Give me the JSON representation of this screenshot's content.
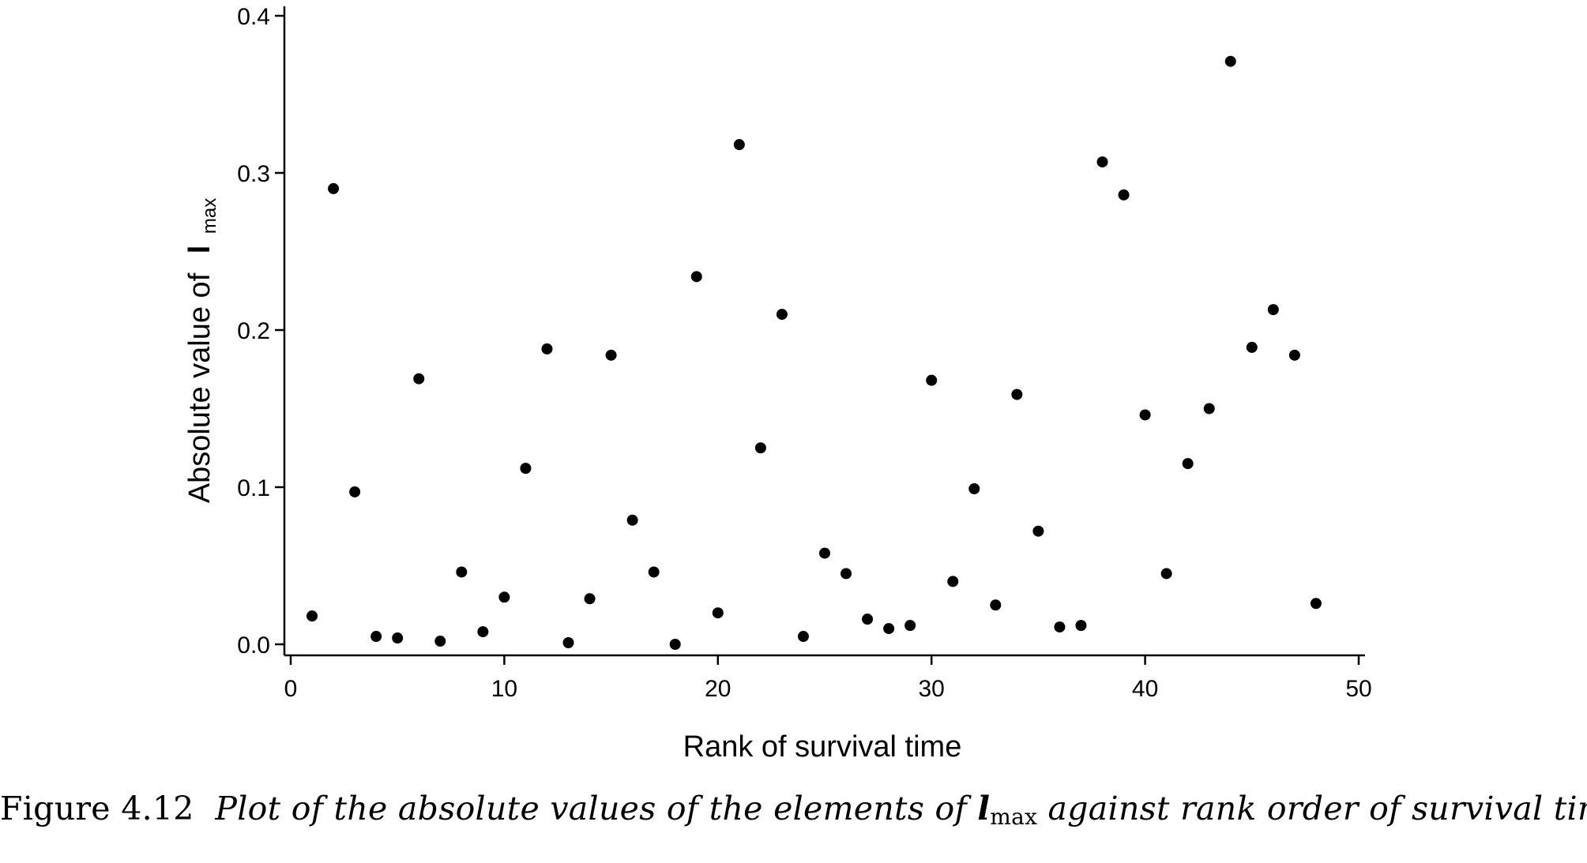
{
  "chart_data": {
    "type": "scatter",
    "xlabel": "Rank of survival time",
    "ylabel": "Absolute value of",
    "ylabel_symbol": "l",
    "ylabel_subscript": "max",
    "xlim": [
      0,
      50
    ],
    "ylim": [
      0,
      0.4
    ],
    "xticks": [
      "0",
      "10",
      "20",
      "30",
      "40",
      "50"
    ],
    "yticks": [
      "0.0",
      "0.1",
      "0.2",
      "0.3",
      "0.4"
    ],
    "grid": false,
    "marker_color": "#000000",
    "points": [
      {
        "x": 1,
        "y": 0.018
      },
      {
        "x": 2,
        "y": 0.29
      },
      {
        "x": 3,
        "y": 0.097
      },
      {
        "x": 4,
        "y": 0.005
      },
      {
        "x": 5,
        "y": 0.004
      },
      {
        "x": 6,
        "y": 0.169
      },
      {
        "x": 7,
        "y": 0.002
      },
      {
        "x": 8,
        "y": 0.046
      },
      {
        "x": 9,
        "y": 0.008
      },
      {
        "x": 10,
        "y": 0.03
      },
      {
        "x": 11,
        "y": 0.112
      },
      {
        "x": 12,
        "y": 0.188
      },
      {
        "x": 13,
        "y": 0.001
      },
      {
        "x": 14,
        "y": 0.029
      },
      {
        "x": 15,
        "y": 0.184
      },
      {
        "x": 16,
        "y": 0.079
      },
      {
        "x": 17,
        "y": 0.046
      },
      {
        "x": 18,
        "y": 0.0
      },
      {
        "x": 19,
        "y": 0.234
      },
      {
        "x": 20,
        "y": 0.02
      },
      {
        "x": 21,
        "y": 0.318
      },
      {
        "x": 22,
        "y": 0.125
      },
      {
        "x": 23,
        "y": 0.21
      },
      {
        "x": 24,
        "y": 0.005
      },
      {
        "x": 25,
        "y": 0.058
      },
      {
        "x": 26,
        "y": 0.045
      },
      {
        "x": 27,
        "y": 0.016
      },
      {
        "x": 28,
        "y": 0.01
      },
      {
        "x": 29,
        "y": 0.012
      },
      {
        "x": 30,
        "y": 0.168
      },
      {
        "x": 31,
        "y": 0.04
      },
      {
        "x": 32,
        "y": 0.099
      },
      {
        "x": 33,
        "y": 0.025
      },
      {
        "x": 34,
        "y": 0.159
      },
      {
        "x": 35,
        "y": 0.072
      },
      {
        "x": 36,
        "y": 0.011
      },
      {
        "x": 37,
        "y": 0.012
      },
      {
        "x": 38,
        "y": 0.307
      },
      {
        "x": 39,
        "y": 0.286
      },
      {
        "x": 40,
        "y": 0.146
      },
      {
        "x": 41,
        "y": 0.045
      },
      {
        "x": 42,
        "y": 0.115
      },
      {
        "x": 43,
        "y": 0.15
      },
      {
        "x": 44,
        "y": 0.371
      },
      {
        "x": 45,
        "y": 0.189
      },
      {
        "x": 46,
        "y": 0.213
      },
      {
        "x": 47,
        "y": 0.184
      },
      {
        "x": 48,
        "y": 0.026
      }
    ]
  },
  "caption": {
    "label": "Figure 4.12",
    "text_before": "Plot of the absolute values of the elements of",
    "symbol": "l",
    "subscript": "max",
    "text_after": "against rank order of survival time."
  }
}
